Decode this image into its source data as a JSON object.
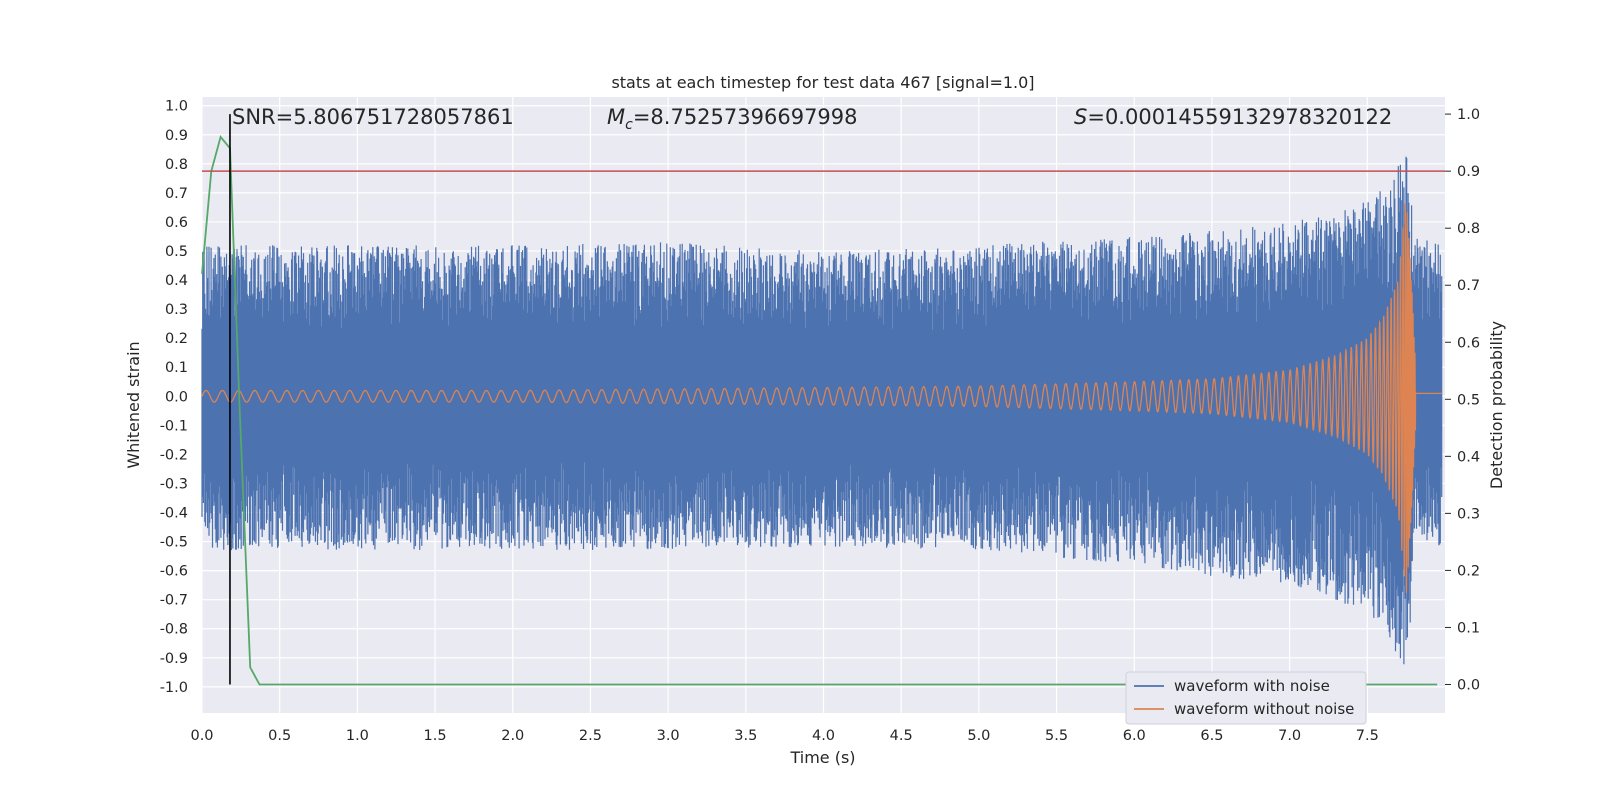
{
  "chart_data": {
    "type": "line",
    "title": "stats at each timestep for test data 467 [signal=1.0]",
    "xlabel": "Time (s)",
    "ylabel": "Whitened strain",
    "y2label": "Detection probability",
    "xlim": [
      0.0,
      8.0
    ],
    "ylim": [
      -1.09,
      1.03
    ],
    "y2lim": [
      -0.05,
      1.03
    ],
    "xticks": [
      "0.0",
      "0.5",
      "1.0",
      "1.5",
      "2.0",
      "2.5",
      "3.0",
      "3.5",
      "4.0",
      "4.5",
      "5.0",
      "5.5",
      "6.0",
      "6.5",
      "7.0",
      "7.5"
    ],
    "yticks": [
      "1.0",
      "0.9",
      "0.8",
      "0.7",
      "0.6",
      "0.5",
      "0.4",
      "0.3",
      "0.2",
      "0.1",
      "0.0",
      "-0.1",
      "-0.2",
      "-0.3",
      "-0.4",
      "-0.5",
      "-0.6",
      "-0.7",
      "-0.8",
      "-0.9",
      "-1.0"
    ],
    "y2ticks": [
      "1.0",
      "0.9",
      "0.8",
      "0.7",
      "0.6",
      "0.5",
      "0.4",
      "0.3",
      "0.2",
      "0.1",
      "0.0"
    ],
    "grid": true,
    "background": "#eaeaf2",
    "legend_position": "lower-right",
    "annotations": {
      "snr": "SNR=5.806751728057861",
      "mc_symbol": "M",
      "mc_sub": "c",
      "mc_value": "=8.75257396697998",
      "s_symbol": "S",
      "s_value": "=0.00014559132978320122"
    },
    "threshold": {
      "axis": "right",
      "y": 0.9,
      "color": "#c44e52"
    },
    "marker_time": 0.18,
    "series": [
      {
        "name": "waveform with noise",
        "axis": "left",
        "color": "#4c72b0",
        "kind": "noise_envelope",
        "t": [
          0.0,
          1.0,
          2.0,
          3.0,
          4.0,
          5.0,
          6.0,
          6.5,
          7.0,
          7.3,
          7.5,
          7.6,
          7.7,
          7.76,
          7.8,
          8.0
        ],
        "upper": [
          0.52,
          0.52,
          0.52,
          0.53,
          0.5,
          0.52,
          0.55,
          0.57,
          0.6,
          0.63,
          0.68,
          0.72,
          0.8,
          0.93,
          0.56,
          0.52
        ],
        "lower": [
          -0.53,
          -0.53,
          -0.53,
          -0.53,
          -0.52,
          -0.53,
          -0.58,
          -0.62,
          -0.65,
          -0.7,
          -0.76,
          -0.78,
          -0.9,
          -0.99,
          -0.5,
          -0.52
        ],
        "floor": 0.42
      },
      {
        "name": "waveform without noise",
        "axis": "left",
        "color": "#dd8452",
        "kind": "chirp",
        "t": [
          0.0,
          1.0,
          2.0,
          3.0,
          4.0,
          5.0,
          6.0,
          6.5,
          7.0,
          7.3,
          7.5,
          7.6,
          7.7,
          7.75,
          7.78,
          7.82,
          8.0
        ],
        "amplitude": [
          0.02,
          0.02,
          0.02,
          0.025,
          0.03,
          0.035,
          0.05,
          0.06,
          0.09,
          0.14,
          0.2,
          0.27,
          0.4,
          0.7,
          0.45,
          0.0,
          0.0
        ],
        "tail": 0.01,
        "end_time": 7.78
      },
      {
        "name": "",
        "axis": "right",
        "color": "#55a868",
        "x": [
          0.0,
          0.06,
          0.12,
          0.18,
          0.24,
          0.31,
          0.37,
          7.95
        ],
        "y": [
          0.72,
          0.9,
          0.96,
          0.94,
          0.5,
          0.03,
          0.0,
          0.0
        ]
      }
    ]
  }
}
